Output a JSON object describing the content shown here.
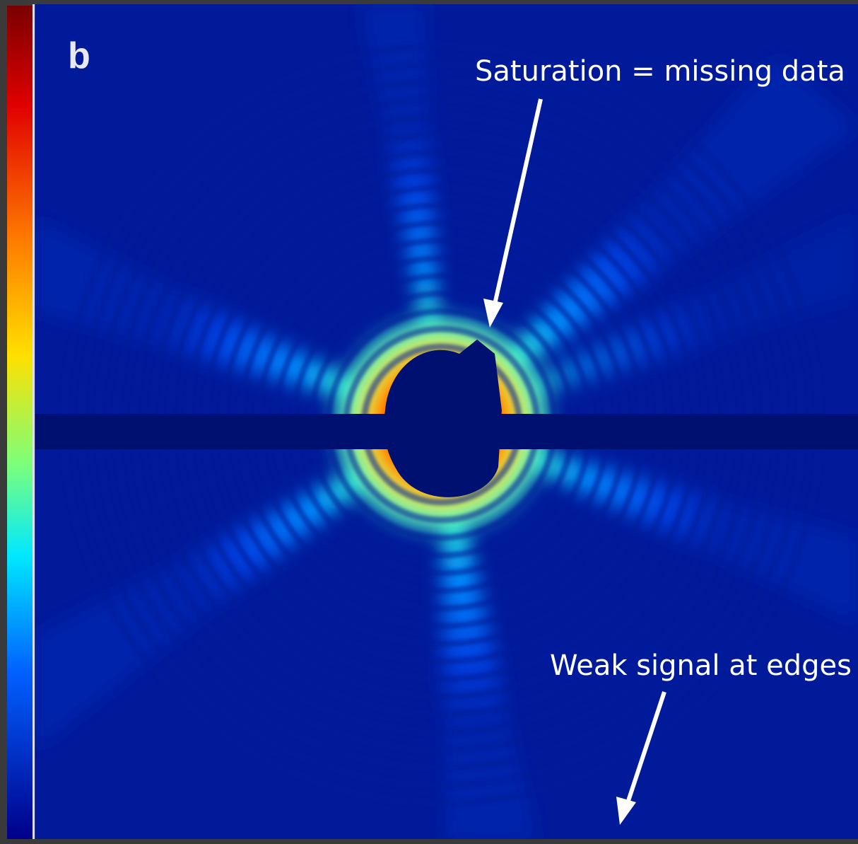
{
  "panel": {
    "label": "b"
  },
  "annotations": [
    {
      "text": "Saturation = missing data"
    },
    {
      "text": "Weak signal at edges"
    }
  ]
}
